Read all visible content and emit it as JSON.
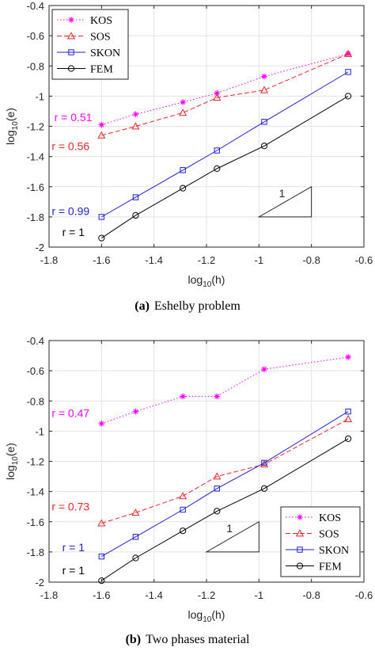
{
  "chart_data": [
    {
      "type": "line",
      "caption_tag": "(a)",
      "caption": "Eshelby problem",
      "xlabel": "log",
      "xlabel_sub": "10",
      "xlabel_arg": "(h)",
      "ylabel": "log",
      "ylabel_sub": "10",
      "ylabel_arg": "(e)",
      "xlim": [
        -1.8,
        -0.6
      ],
      "ylim": [
        -2,
        -0.4
      ],
      "xticks": [
        -1.8,
        -1.6,
        -1.4,
        -1.2,
        -1,
        -0.8,
        -0.6
      ],
      "xtick_labels": [
        "-1.8",
        "-1.6",
        "-1.4",
        "-1.2",
        "-1",
        "-0.8",
        "-0.6"
      ],
      "yticks": [
        -2,
        -1.8,
        -1.6,
        -1.4,
        -1.2,
        -1,
        -0.8,
        -0.6,
        -0.4
      ],
      "ytick_labels": [
        "-2",
        "-1.8",
        "-1.6",
        "-1.4",
        "-1.2",
        "-1",
        "-0.8",
        "-0.6",
        "-0.4"
      ],
      "grid": true,
      "legend": "top-left",
      "series": [
        {
          "name": "KOS",
          "color": "#ff00ff",
          "dash": "dotted",
          "marker": "star",
          "x": [
            -1.6,
            -1.47,
            -1.29,
            -1.16,
            -0.98,
            -0.66
          ],
          "y": [
            -1.19,
            -1.12,
            -1.04,
            -0.98,
            -0.87,
            -0.72
          ]
        },
        {
          "name": "SOS",
          "color": "#e8262b",
          "dash": "dashed",
          "marker": "triangle",
          "x": [
            -1.6,
            -1.47,
            -1.29,
            -1.16,
            -0.98,
            -0.66
          ],
          "y": [
            -1.26,
            -1.2,
            -1.11,
            -1.01,
            -0.96,
            -0.72
          ]
        },
        {
          "name": "SKON",
          "color": "#1f1fd6",
          "dash": "solid",
          "marker": "square",
          "x": [
            -1.6,
            -1.47,
            -1.29,
            -1.16,
            -0.98,
            -0.66
          ],
          "y": [
            -1.8,
            -1.67,
            -1.49,
            -1.36,
            -1.17,
            -0.84
          ]
        },
        {
          "name": "FEM",
          "color": "#000000",
          "dash": "solid",
          "marker": "circle",
          "x": [
            -1.6,
            -1.47,
            -1.29,
            -1.16,
            -0.98,
            -0.66
          ],
          "y": [
            -1.94,
            -1.79,
            -1.61,
            -1.48,
            -1.33,
            -1.0
          ]
        }
      ],
      "annotations": [
        {
          "text": "r = 0.51",
          "color": "#ff00ff",
          "x": -1.78,
          "y": -1.14
        },
        {
          "text": "r = 0.56",
          "color": "#e8262b",
          "x": -1.79,
          "y": -1.33
        },
        {
          "text": "r = 0.99",
          "color": "#1f1fd6",
          "x": -1.79,
          "y": -1.76
        },
        {
          "text": "r = 1",
          "color": "#000000",
          "x": -1.75,
          "y": -1.9
        }
      ],
      "slope_triangle": {
        "label": "1",
        "x_left": -1.0,
        "x_right": -0.8,
        "y_bottom": -1.8,
        "y_top": -1.6
      }
    },
    {
      "type": "line",
      "caption_tag": "(b)",
      "caption": "Two phases material",
      "xlabel": "log",
      "xlabel_sub": "10",
      "xlabel_arg": "(h)",
      "ylabel": "log",
      "ylabel_sub": "10",
      "ylabel_arg": "(e)",
      "xlim": [
        -1.8,
        -0.6
      ],
      "ylim": [
        -2,
        -0.4
      ],
      "xticks": [
        -1.8,
        -1.6,
        -1.4,
        -1.2,
        -1,
        -0.8,
        -0.6
      ],
      "xtick_labels": [
        "-1.8",
        "-1.6",
        "-1.4",
        "-1.2",
        "-1",
        "-0.8",
        "-0.6"
      ],
      "yticks": [
        -2,
        -1.8,
        -1.6,
        -1.4,
        -1.2,
        -1,
        -0.8,
        -0.6,
        -0.4
      ],
      "ytick_labels": [
        "-2",
        "-1.8",
        "-1.6",
        "-1.4",
        "-1.2",
        "-1",
        "-0.8",
        "-0.6",
        "-0.4"
      ],
      "grid": true,
      "legend": "bottom-right",
      "series": [
        {
          "name": "KOS",
          "color": "#ff00ff",
          "dash": "dotted",
          "marker": "star",
          "x": [
            -1.6,
            -1.47,
            -1.29,
            -1.16,
            -0.98,
            -0.66
          ],
          "y": [
            -0.95,
            -0.87,
            -0.77,
            -0.77,
            -0.59,
            -0.51
          ]
        },
        {
          "name": "SOS",
          "color": "#e8262b",
          "dash": "dashed",
          "marker": "triangle",
          "x": [
            -1.6,
            -1.47,
            -1.29,
            -1.16,
            -0.98,
            -0.66
          ],
          "y": [
            -1.61,
            -1.54,
            -1.43,
            -1.3,
            -1.22,
            -0.92
          ]
        },
        {
          "name": "SKON",
          "color": "#1f1fd6",
          "dash": "solid",
          "marker": "square",
          "x": [
            -1.6,
            -1.47,
            -1.29,
            -1.16,
            -0.98,
            -0.66
          ],
          "y": [
            -1.83,
            -1.7,
            -1.52,
            -1.38,
            -1.21,
            -0.87
          ]
        },
        {
          "name": "FEM",
          "color": "#000000",
          "dash": "solid",
          "marker": "circle",
          "x": [
            -1.6,
            -1.47,
            -1.29,
            -1.16,
            -0.98,
            -0.66
          ],
          "y": [
            -1.99,
            -1.84,
            -1.66,
            -1.53,
            -1.38,
            -1.05
          ]
        }
      ],
      "annotations": [
        {
          "text": "r = 0.47",
          "color": "#ff00ff",
          "x": -1.79,
          "y": -0.88
        },
        {
          "text": "r = 0.73",
          "color": "#e8262b",
          "x": -1.79,
          "y": -1.5
        },
        {
          "text": "r = 1",
          "color": "#1f1fd6",
          "x": -1.75,
          "y": -1.77
        },
        {
          "text": "r = 1",
          "color": "#000000",
          "x": -1.75,
          "y": -1.92
        }
      ],
      "slope_triangle": {
        "label": "1",
        "x_left": -1.2,
        "x_right": -1.0,
        "y_bottom": -1.8,
        "y_top": -1.6
      }
    }
  ]
}
